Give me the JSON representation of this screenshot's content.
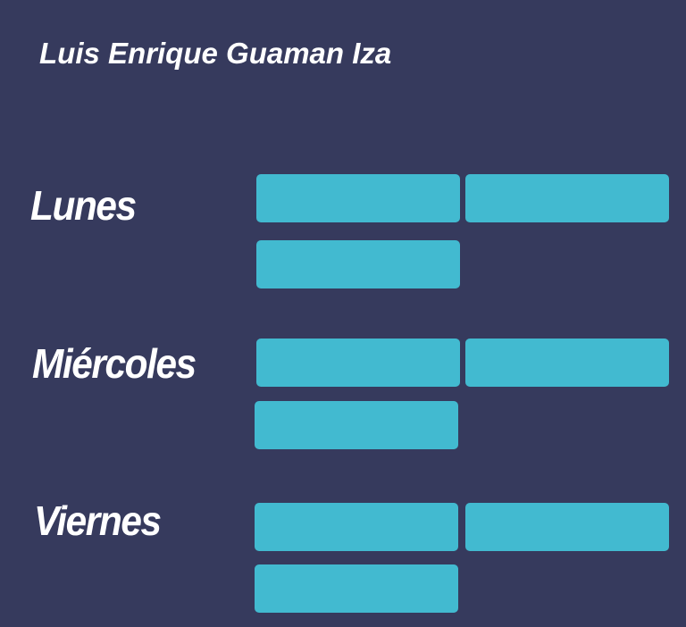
{
  "header": {
    "title": "Luis Enrique Guaman Iza"
  },
  "colors": {
    "background": "#363a5d",
    "slot": "#42bad0",
    "text": "#ffffff"
  },
  "schedule": {
    "days": [
      {
        "label": "Lunes",
        "slot_count": 3
      },
      {
        "label": "Miércoles",
        "slot_count": 3
      },
      {
        "label": "Viernes",
        "slot_count": 3
      }
    ]
  }
}
